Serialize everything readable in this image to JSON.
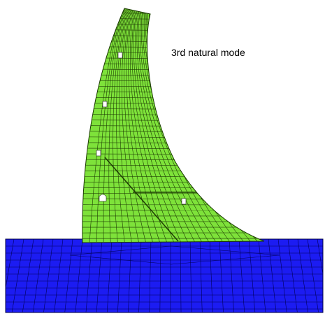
{
  "label": "3rd natural mode"
}
